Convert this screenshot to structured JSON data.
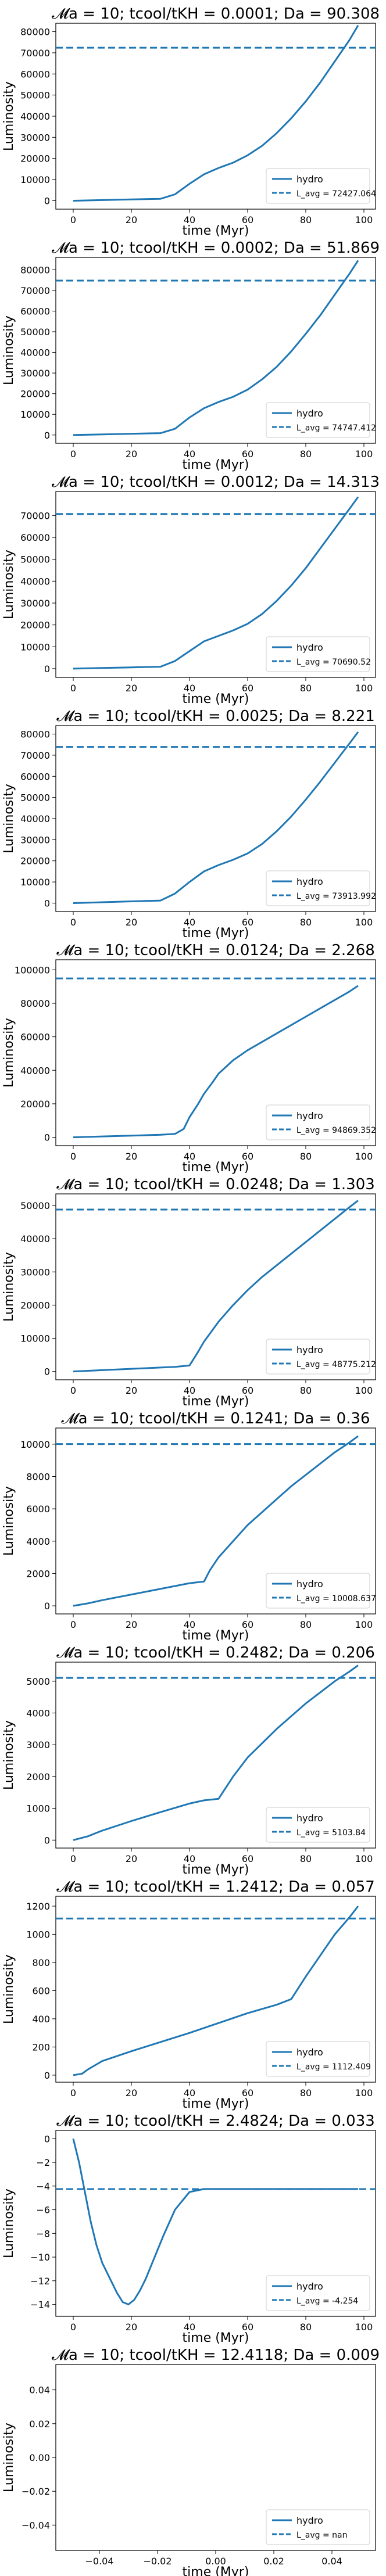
{
  "chart_data": [
    {
      "type": "line",
      "title": "𝓜a = 10; tcool/tKH = 0.0001; Da = 90.308",
      "xlabel": "time (Myr)",
      "ylabel": "Luminosity",
      "xlim": [
        -6,
        104
      ],
      "ylim": [
        -4000,
        84000
      ],
      "xticks": [
        "0",
        "20",
        "40",
        "60",
        "80",
        "100"
      ],
      "yticks": [
        "0",
        "10000",
        "20000",
        "30000",
        "40000",
        "50000",
        "60000",
        "70000",
        "80000"
      ],
      "series": [
        {
          "name": "hydro",
          "style": "solid",
          "x": [
            0,
            10,
            20,
            30,
            35,
            40,
            45,
            50,
            55,
            60,
            65,
            70,
            75,
            80,
            85,
            90,
            95,
            98
          ],
          "y": [
            0,
            300,
            600,
            900,
            3000,
            8000,
            12500,
            15500,
            18000,
            21500,
            26000,
            32000,
            39000,
            47000,
            56000,
            66000,
            76000,
            83000
          ]
        },
        {
          "name": "L_avg = 72427.064",
          "style": "dashed",
          "constant": 72427.064
        }
      ],
      "legend": [
        "hydro",
        "L_avg = 72427.064"
      ],
      "legend_position": "lower-right",
      "grid": false
    },
    {
      "type": "line",
      "title": "𝓜a = 10; tcool/tKH = 0.0002; Da = 51.869",
      "xlabel": "time (Myr)",
      "ylabel": "Luminosity",
      "xlim": [
        -6,
        104
      ],
      "ylim": [
        -4000,
        86000
      ],
      "xticks": [
        "0",
        "20",
        "40",
        "60",
        "80",
        "100"
      ],
      "yticks": [
        "0",
        "10000",
        "20000",
        "30000",
        "40000",
        "50000",
        "60000",
        "70000",
        "80000"
      ],
      "series": [
        {
          "name": "hydro",
          "style": "solid",
          "x": [
            0,
            10,
            20,
            30,
            35,
            40,
            45,
            50,
            55,
            60,
            65,
            70,
            75,
            80,
            85,
            90,
            95,
            98
          ],
          "y": [
            0,
            300,
            600,
            900,
            3000,
            8500,
            13000,
            16000,
            18500,
            22000,
            27000,
            33000,
            40500,
            49000,
            58000,
            68000,
            78000,
            84500
          ]
        },
        {
          "name": "L_avg = 74747.412",
          "style": "dashed",
          "constant": 74747.412
        }
      ],
      "legend": [
        "hydro",
        "L_avg = 74747.412"
      ],
      "legend_position": "lower-right",
      "grid": false
    },
    {
      "type": "line",
      "title": "𝓜a = 10; tcool/tKH = 0.0012; Da = 14.313",
      "xlabel": "time (Myr)",
      "ylabel": "Luminosity",
      "xlim": [
        -6,
        104
      ],
      "ylim": [
        -4000,
        81000
      ],
      "xticks": [
        "0",
        "20",
        "40",
        "60",
        "80",
        "100"
      ],
      "yticks": [
        "0",
        "10000",
        "20000",
        "30000",
        "40000",
        "50000",
        "60000",
        "70000"
      ],
      "series": [
        {
          "name": "hydro",
          "style": "solid",
          "x": [
            0,
            10,
            20,
            30,
            35,
            40,
            45,
            50,
            55,
            60,
            65,
            70,
            75,
            80,
            85,
            90,
            95,
            98
          ],
          "y": [
            0,
            300,
            600,
            900,
            3500,
            8000,
            12500,
            15000,
            17500,
            20500,
            25000,
            31000,
            38000,
            46000,
            55000,
            64000,
            73000,
            78500
          ]
        },
        {
          "name": "L_avg = 70690.52",
          "style": "dashed",
          "constant": 70690.52
        }
      ],
      "legend": [
        "hydro",
        "L_avg = 70690.52"
      ],
      "legend_position": "lower-right",
      "grid": false
    },
    {
      "type": "line",
      "title": "𝓜a = 10; tcool/tKH = 0.0025; Da = 8.221",
      "xlabel": "time (Myr)",
      "ylabel": "Luminosity",
      "xlim": [
        -6,
        104
      ],
      "ylim": [
        -4000,
        84000
      ],
      "xticks": [
        "0",
        "20",
        "40",
        "60",
        "80",
        "100"
      ],
      "yticks": [
        "0",
        "10000",
        "20000",
        "30000",
        "40000",
        "50000",
        "60000",
        "70000",
        "80000"
      ],
      "series": [
        {
          "name": "hydro",
          "style": "solid",
          "x": [
            0,
            10,
            20,
            30,
            35,
            40,
            45,
            50,
            55,
            60,
            65,
            70,
            75,
            80,
            85,
            90,
            95,
            98
          ],
          "y": [
            0,
            400,
            800,
            1200,
            4500,
            10000,
            15000,
            18000,
            20500,
            23500,
            28000,
            34000,
            41000,
            49000,
            57500,
            66500,
            75500,
            81000
          ]
        },
        {
          "name": "L_avg = 73913.992",
          "style": "dashed",
          "constant": 73913.992
        }
      ],
      "legend": [
        "hydro",
        "L_avg = 73913.992"
      ],
      "legend_position": "lower-right",
      "grid": false
    },
    {
      "type": "line",
      "title": "𝓜a = 10; tcool/tKH = 0.0124; Da = 2.268",
      "xlabel": "time (Myr)",
      "ylabel": "Luminosity",
      "xlim": [
        -6,
        104
      ],
      "ylim": [
        -5000,
        106000
      ],
      "xticks": [
        "0",
        "20",
        "40",
        "60",
        "80",
        "100"
      ],
      "yticks": [
        "0",
        "20000",
        "40000",
        "60000",
        "80000",
        "100000"
      ],
      "series": [
        {
          "name": "hydro",
          "style": "solid",
          "x": [
            0,
            10,
            20,
            30,
            35,
            38,
            40,
            43,
            45,
            48,
            50,
            55,
            60,
            65,
            70,
            75,
            80,
            85,
            90,
            95,
            98
          ],
          "y": [
            0,
            500,
            1000,
            1500,
            2000,
            5000,
            12000,
            20000,
            26000,
            33000,
            38000,
            46000,
            52000,
            57000,
            62000,
            67000,
            72000,
            77000,
            82000,
            87000,
            90500
          ]
        },
        {
          "name": "L_avg = 94869.352",
          "style": "dashed",
          "constant": 94869.352
        }
      ],
      "legend": [
        "hydro",
        "L_avg = 94869.352"
      ],
      "legend_position": "lower-right",
      "grid": false
    },
    {
      "type": "line",
      "title": "𝓜a = 10; tcool/tKH = 0.0248; Da = 1.303",
      "xlabel": "time (Myr)",
      "ylabel": "Luminosity",
      "xlim": [
        -6,
        104
      ],
      "ylim": [
        -2500,
        53500
      ],
      "xticks": [
        "0",
        "20",
        "40",
        "60",
        "80",
        "100"
      ],
      "yticks": [
        "0",
        "10000",
        "20000",
        "30000",
        "40000",
        "50000"
      ],
      "series": [
        {
          "name": "hydro",
          "style": "solid",
          "x": [
            0,
            10,
            20,
            30,
            35,
            40,
            43,
            45,
            50,
            55,
            60,
            65,
            70,
            75,
            80,
            85,
            90,
            95,
            98
          ],
          "y": [
            0,
            400,
            800,
            1200,
            1400,
            1800,
            6000,
            9000,
            15000,
            20000,
            24500,
            28500,
            32000,
            35500,
            39000,
            42500,
            46000,
            49500,
            51500
          ]
        },
        {
          "name": "L_avg = 48775.212",
          "style": "dashed",
          "constant": 48775.212
        }
      ],
      "legend": [
        "hydro",
        "L_avg = 48775.212"
      ],
      "legend_position": "lower-right",
      "grid": false
    },
    {
      "type": "line",
      "title": "𝓜a = 10; tcool/tKH = 0.1241; Da = 0.36",
      "xlabel": "time (Myr)",
      "ylabel": "Luminosity",
      "xlim": [
        -6,
        104
      ],
      "ylim": [
        -500,
        11000
      ],
      "xticks": [
        "0",
        "20",
        "40",
        "60",
        "80",
        "100"
      ],
      "yticks": [
        "0",
        "2000",
        "4000",
        "6000",
        "8000",
        "10000"
      ],
      "series": [
        {
          "name": "hydro",
          "style": "solid",
          "x": [
            0,
            5,
            10,
            20,
            30,
            40,
            45,
            47,
            50,
            55,
            60,
            65,
            70,
            75,
            80,
            85,
            90,
            95,
            98
          ],
          "y": [
            0,
            150,
            350,
            700,
            1050,
            1400,
            1500,
            2200,
            3000,
            4000,
            5000,
            5800,
            6600,
            7400,
            8100,
            8800,
            9500,
            10100,
            10500
          ]
        },
        {
          "name": "L_avg = 10008.637",
          "style": "dashed",
          "constant": 10008.637
        }
      ],
      "legend": [
        "hydro",
        "L_avg = 10008.637"
      ],
      "legend_position": "lower-right",
      "grid": false
    },
    {
      "type": "line",
      "title": "𝓜a = 10; tcool/tKH = 0.2482; Da = 0.206",
      "xlabel": "time (Myr)",
      "ylabel": "Luminosity",
      "xlim": [
        -6,
        104
      ],
      "ylim": [
        -250,
        5600
      ],
      "xticks": [
        "0",
        "20",
        "40",
        "60",
        "80",
        "100"
      ],
      "yticks": [
        "0",
        "1000",
        "2000",
        "3000",
        "4000",
        "5000"
      ],
      "series": [
        {
          "name": "hydro",
          "style": "solid",
          "x": [
            0,
            5,
            10,
            20,
            30,
            40,
            45,
            50,
            55,
            60,
            65,
            70,
            75,
            80,
            85,
            90,
            95,
            98
          ],
          "y": [
            0,
            120,
            300,
            600,
            880,
            1150,
            1250,
            1300,
            2000,
            2600,
            3050,
            3500,
            3900,
            4300,
            4650,
            5000,
            5300,
            5500
          ]
        },
        {
          "name": "L_avg = 5103.84",
          "style": "dashed",
          "constant": 5103.84
        }
      ],
      "legend": [
        "hydro",
        "L_avg = 5103.84"
      ],
      "legend_position": "lower-right",
      "grid": false
    },
    {
      "type": "line",
      "title": "𝓜a = 10; tcool/tKH = 1.2412; Da = 0.057",
      "xlabel": "time (Myr)",
      "ylabel": "Luminosity",
      "xlim": [
        -6,
        104
      ],
      "ylim": [
        -50,
        1270
      ],
      "xticks": [
        "0",
        "20",
        "40",
        "60",
        "80",
        "100"
      ],
      "yticks": [
        "0",
        "200",
        "400",
        "600",
        "800",
        "1000",
        "1200"
      ],
      "series": [
        {
          "name": "hydro",
          "style": "solid",
          "x": [
            0,
            3,
            5,
            10,
            20,
            30,
            40,
            50,
            60,
            70,
            75,
            80,
            85,
            90,
            95,
            98
          ],
          "y": [
            0,
            10,
            40,
            100,
            170,
            235,
            300,
            370,
            440,
            500,
            540,
            700,
            850,
            1000,
            1120,
            1200
          ]
        },
        {
          "name": "L_avg = 1112.409",
          "style": "dashed",
          "constant": 1112.409
        }
      ],
      "legend": [
        "hydro",
        "L_avg = 1112.409"
      ],
      "legend_position": "lower-right",
      "grid": false
    },
    {
      "type": "line",
      "title": "𝓜a = 10; tcool/tKH = 2.4824; Da = 0.033",
      "xlabel": "time (Myr)",
      "ylabel": "Luminosity",
      "xlim": [
        -6,
        104
      ],
      "ylim": [
        -15,
        0.7
      ],
      "xticks": [
        "0",
        "20",
        "40",
        "60",
        "80",
        "100"
      ],
      "yticks": [
        "0",
        "−2",
        "−4",
        "−6",
        "−8",
        "−10",
        "−12",
        "−14"
      ],
      "series": [
        {
          "name": "hydro",
          "style": "solid",
          "x": [
            0,
            2,
            4,
            6,
            8,
            10,
            13,
            15,
            17,
            19,
            21,
            23,
            25,
            28,
            31,
            35,
            40,
            45,
            50,
            60,
            70,
            80,
            90,
            98
          ],
          "y": [
            0,
            -2,
            -4.5,
            -7,
            -9,
            -10.5,
            -12,
            -13,
            -13.8,
            -14,
            -13.6,
            -12.8,
            -11.8,
            -10,
            -8.2,
            -6,
            -4.5,
            -4.25,
            -4.25,
            -4.25,
            -4.25,
            -4.25,
            -4.25,
            -4.25
          ]
        },
        {
          "name": "L_avg = -4.254",
          "style": "dashed",
          "constant": -4.254
        }
      ],
      "legend": [
        "hydro",
        "L_avg = -4.254"
      ],
      "legend_position": "lower-right",
      "grid": false
    },
    {
      "type": "line",
      "title": "𝓜a = 10; tcool/tKH = 12.4118; Da = 0.009",
      "xlabel": "time (Myr)",
      "ylabel": "Luminosity",
      "xlim": [
        -0.055,
        0.055
      ],
      "ylim": [
        -0.055,
        0.055
      ],
      "xticks": [
        "−0.04",
        "−0.02",
        "0.00",
        "0.02",
        "0.04"
      ],
      "yticks": [
        "0.04",
        "0.02",
        "0.00",
        "−0.02",
        "−0.04"
      ],
      "series": [
        {
          "name": "hydro",
          "style": "solid",
          "x": [],
          "y": []
        },
        {
          "name": "L_avg = nan",
          "style": "dashed",
          "constant": null
        }
      ],
      "legend": [
        "hydro",
        "L_avg = nan"
      ],
      "legend_position": "lower-right",
      "grid": false
    }
  ],
  "colors": {
    "line": "#1f77b4",
    "axis": "#000000"
  }
}
